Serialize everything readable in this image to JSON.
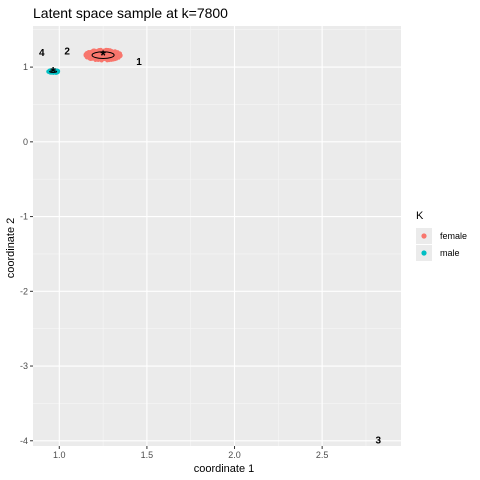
{
  "chart_data": {
    "type": "scatter",
    "title": "Latent space sample at k=7800",
    "xlabel": "coordinate 1",
    "ylabel": "coordinate 2",
    "xlim": [
      0.85,
      2.95
    ],
    "ylim": [
      -4.07,
      1.55
    ],
    "x_ticks": [
      1.0,
      1.5,
      2.0,
      2.5
    ],
    "x_tick_labels": [
      "1.0",
      "1.5",
      "2.0",
      "2.5"
    ],
    "y_ticks": [
      -4,
      -3,
      -2,
      -1,
      0,
      1
    ],
    "y_tick_labels": [
      "-4",
      "-3",
      "-2",
      "-1",
      "0",
      "1"
    ],
    "grid": true,
    "background": "#ebebeb",
    "legend": {
      "title": "K",
      "position": "right",
      "entries": [
        {
          "label": "female",
          "color": "#F8766D"
        },
        {
          "label": "male",
          "color": "#00BFC4"
        }
      ]
    },
    "series": [
      {
        "name": "female",
        "color": "#F8766D",
        "center": [
          1.25,
          1.16
        ],
        "spread": [
          0.1,
          0.07
        ],
        "n_points": 260,
        "ellipse_radii": [
          0.063,
          0.045
        ],
        "mean_marker": "*"
      },
      {
        "name": "male",
        "color": "#00BFC4",
        "center": [
          0.965,
          0.94
        ],
        "spread": [
          0.03,
          0.018
        ],
        "n_points": 60,
        "ellipse_radii": [
          0.02,
          0.012
        ],
        "mean_marker": "*"
      }
    ],
    "annotations": [
      {
        "text": "1",
        "x": 1.455,
        "y": 1.08
      },
      {
        "text": "2",
        "x": 1.045,
        "y": 1.22
      },
      {
        "text": "3",
        "x": 2.82,
        "y": -3.98
      },
      {
        "text": "4",
        "x": 0.9,
        "y": 1.2
      }
    ]
  }
}
